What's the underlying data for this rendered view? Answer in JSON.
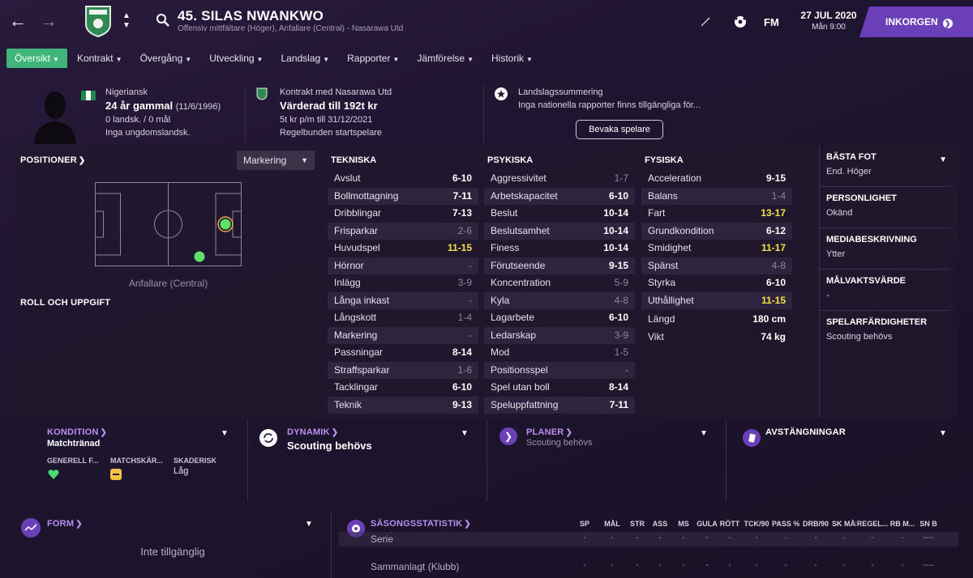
{
  "header": {
    "player_title": "45. SILAS NWANKWO",
    "player_subtitle": "Offensiv mittfältare (Höger), Anfallare (Central) - Nasarawa Utd",
    "logo": "FM",
    "date": "27 JUL 2020",
    "day_time": "Mån 9:00",
    "inbox_label": "INKORGEN"
  },
  "tabs": [
    {
      "label": "Översikt"
    },
    {
      "label": "Kontrakt"
    },
    {
      "label": "Övergång"
    },
    {
      "label": "Utveckling"
    },
    {
      "label": "Landslag"
    },
    {
      "label": "Rapporter"
    },
    {
      "label": "Jämförelse"
    },
    {
      "label": "Historik"
    }
  ],
  "info": {
    "nationality": "Nigeriansk",
    "age": "24 år gammal",
    "dob": "(11/6/1996)",
    "caps": "0 landsk. / 0 mål",
    "youth_caps": "Inga ungdomslandsk.",
    "contract_label": "Kontrakt med Nasarawa Utd",
    "value": "Värderad till 192t kr",
    "wage": "5t kr p/m till 31/12/2021",
    "role_status": "Regelbunden startspelare",
    "intl_label": "Landslagssummering",
    "intl_text": "Inga nationella rapporter finns tillgängliga för...",
    "watch_button": "Bevaka spelare"
  },
  "positions": {
    "title": "POSITIONER",
    "dropdown": "Markering",
    "caption": "Anfallare (Central)",
    "role_title": "ROLL OCH UPPGIFT"
  },
  "technical": {
    "title": "TEKNISKA",
    "rows": [
      {
        "name": "Avslut",
        "value": "6-10",
        "style": "normal"
      },
      {
        "name": "Bollmottagning",
        "value": "7-11",
        "style": "normal"
      },
      {
        "name": "Dribblingar",
        "value": "7-13",
        "style": "normal"
      },
      {
        "name": "Frisparkar",
        "value": "2-6",
        "style": "dim"
      },
      {
        "name": "Huvudspel",
        "value": "11-15",
        "style": "yellow"
      },
      {
        "name": "Hörnor",
        "value": "-",
        "style": "dim"
      },
      {
        "name": "Inlägg",
        "value": "3-9",
        "style": "dim"
      },
      {
        "name": "Långa inkast",
        "value": "-",
        "style": "dim"
      },
      {
        "name": "Långskott",
        "value": "1-4",
        "style": "dim"
      },
      {
        "name": "Markering",
        "value": "-",
        "style": "dim"
      },
      {
        "name": "Passningar",
        "value": "8-14",
        "style": "normal"
      },
      {
        "name": "Straffsparkar",
        "value": "1-6",
        "style": "dim"
      },
      {
        "name": "Tacklingar",
        "value": "6-10",
        "style": "normal"
      },
      {
        "name": "Teknik",
        "value": "9-13",
        "style": "normal"
      }
    ]
  },
  "mental": {
    "title": "PSYKISKA",
    "rows": [
      {
        "name": "Aggressivitet",
        "value": "1-7",
        "style": "dim"
      },
      {
        "name": "Arbetskapacitet",
        "value": "6-10",
        "style": "normal"
      },
      {
        "name": "Beslut",
        "value": "10-14",
        "style": "normal"
      },
      {
        "name": "Beslutsamhet",
        "value": "10-14",
        "style": "normal"
      },
      {
        "name": "Finess",
        "value": "10-14",
        "style": "normal"
      },
      {
        "name": "Förutseende",
        "value": "9-15",
        "style": "normal"
      },
      {
        "name": "Koncentration",
        "value": "5-9",
        "style": "dim"
      },
      {
        "name": "Kyla",
        "value": "4-8",
        "style": "dim"
      },
      {
        "name": "Lagarbete",
        "value": "6-10",
        "style": "normal"
      },
      {
        "name": "Ledarskap",
        "value": "3-9",
        "style": "dim"
      },
      {
        "name": "Mod",
        "value": "1-5",
        "style": "dim"
      },
      {
        "name": "Positionsspel",
        "value": "-",
        "style": "dim"
      },
      {
        "name": "Spel utan boll",
        "value": "8-14",
        "style": "normal"
      },
      {
        "name": "Speluppfattning",
        "value": "7-11",
        "style": "normal"
      }
    ]
  },
  "physical": {
    "title": "FYSISKA",
    "rows": [
      {
        "name": "Acceleration",
        "value": "9-15",
        "style": "normal"
      },
      {
        "name": "Balans",
        "value": "1-4",
        "style": "dim"
      },
      {
        "name": "Fart",
        "value": "13-17",
        "style": "yellow"
      },
      {
        "name": "Grundkondition",
        "value": "6-12",
        "style": "normal"
      },
      {
        "name": "Smidighet",
        "value": "11-17",
        "style": "yellow"
      },
      {
        "name": "Spänst",
        "value": "4-8",
        "style": "dim"
      },
      {
        "name": "Styrka",
        "value": "6-10",
        "style": "normal"
      },
      {
        "name": "Uthållighet",
        "value": "11-15",
        "style": "yellow"
      }
    ],
    "extra": [
      {
        "name": "Längd",
        "value": "180 cm"
      },
      {
        "name": "Vikt",
        "value": "74 kg"
      }
    ]
  },
  "side": [
    {
      "title": "BÄSTA FOT",
      "value": "End. Höger"
    },
    {
      "title": "PERSONLIGHET",
      "value": "Okänd"
    },
    {
      "title": "MEDIABESKRIVNING",
      "value": "Ytter"
    },
    {
      "title": "MÅLVAKTSVÄRDE",
      "value": "-"
    },
    {
      "title": "SPELARFÄRDIGHETER",
      "value": "Scouting behövs"
    }
  ],
  "condition": {
    "title": "KONDITION",
    "status": "Matchtränad",
    "label_fitness": "GENERELL F...",
    "label_sharpness": "MATCHSKÄR...",
    "label_injury": "SKADERISK",
    "injury_value": "Låg"
  },
  "dynamics": {
    "title": "DYNAMIK",
    "value": "Scouting behövs"
  },
  "plans": {
    "title": "PLANER",
    "value": "Scouting behövs"
  },
  "bans": {
    "title": "AVSTÄNGNINGAR"
  },
  "form": {
    "title": "FORM",
    "value": "Inte tillgänglig"
  },
  "season_stats": {
    "title": "SÄSONGSSTATISTIK",
    "columns": [
      "SP",
      "MÅL",
      "STR",
      "ASS",
      "MS",
      "GULA",
      "RÖTT",
      "TCK/90",
      "PASS %",
      "DRB/90",
      "SK MÅL",
      "REGEL...",
      "RB M...",
      "SN B"
    ],
    "rows": [
      {
        "label": "Serie",
        "cells": [
          "-",
          "-",
          "-",
          "-",
          "-",
          "-",
          "-",
          "-",
          "-",
          "-",
          "-",
          "-",
          "-",
          "----"
        ]
      },
      {
        "label": "Sammanlagt (Klubb)",
        "cells": [
          "-",
          "-",
          "-",
          "-",
          "-",
          "-",
          "-",
          "-",
          "-",
          "-",
          "-",
          "-",
          "-",
          "----"
        ]
      }
    ]
  },
  "colors": {
    "accent": "#6b3fb8",
    "tab_active": "#3fb57a",
    "highlight": "#f3e24a"
  }
}
